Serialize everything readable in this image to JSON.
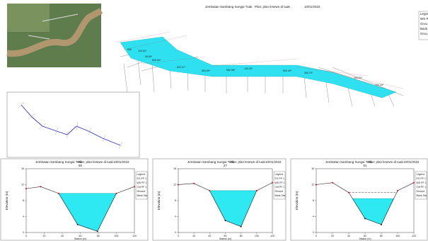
{
  "header": {
    "title": "Jembatan Sambang Sungai Tuak",
    "plan": "Plan: plan lesewn di tuak",
    "date": "10/01/2022"
  },
  "top_legend": [
    "Legen",
    "WS PF",
    "Grou",
    "Bank Sta",
    "Grou"
  ],
  "station_labels": [
    "606",
    "100.00*",
    "90.50*",
    "690.90*",
    "622.07*",
    "603.50*",
    "582.58*",
    "100.40*",
    "500.40*",
    "300.70*",
    "100.32*",
    "700.40*"
  ],
  "panels": [
    {
      "title": "Jembatan Sambang Sungai Tuak",
      "plan": "Plan: plan lesewn di tuak",
      "date": "10/01/2022",
      "station": "60",
      "x_label": "Station (m)",
      "y_label": "Elevation (m)",
      "legend": [
        "Legend",
        "EG PF 1",
        "WS PF 1",
        "Crit PF 1",
        "Ground",
        "Bank Sta"
      ],
      "xlim": [
        0,
        120
      ],
      "ylim": [
        0,
        16
      ],
      "xticks": [
        0,
        20,
        40,
        60,
        80,
        100,
        120
      ],
      "yticks": [
        0,
        4,
        8,
        12,
        16
      ],
      "ground_x": [
        0,
        16,
        36,
        57,
        79,
        100,
        120
      ],
      "ground_y": [
        11,
        11.5,
        9.8,
        2,
        0.3,
        9.8,
        11.5
      ],
      "water_level": 9.8
    },
    {
      "title": "Jembatan Sambang Sungai Tuak",
      "plan": "Plan: plan lesewn di tuak",
      "date": "10/01/2022",
      "station": "27",
      "x_label": "Station (m)",
      "y_label": "Elevation (m)",
      "legend": [
        "Legend",
        "EG PF 1",
        "WS PF 1",
        "Crit PF 1",
        "Ground",
        "Bank Sta"
      ],
      "xlim": [
        0,
        120
      ],
      "ylim": [
        0,
        16
      ],
      "xticks": [
        0,
        20,
        40,
        60,
        80,
        100,
        120
      ],
      "yticks": [
        0,
        4,
        8,
        12,
        16
      ],
      "ground_x": [
        0,
        20,
        40,
        60,
        80,
        100,
        120
      ],
      "ground_y": [
        12,
        12.3,
        10.5,
        3,
        1.5,
        10.5,
        12.5
      ],
      "water_level": 10.5
    },
    {
      "title": "Jembatan Sambang Sungai Tuak",
      "plan": "Plan: plan lesewn di tuak",
      "date": "10/01/2022",
      "station": "51",
      "x_label": "Station (m)",
      "y_label": "Elevation (m)",
      "legend": [
        "Legend",
        "EG PF 1",
        "WS PF 1",
        "Crit PF 1",
        "Ground",
        "Bank Sta"
      ],
      "xlim": [
        0,
        120
      ],
      "ylim": [
        0,
        16
      ],
      "xticks": [
        0,
        20,
        40,
        60,
        80,
        100,
        120
      ],
      "yticks": [
        0,
        4,
        8,
        12,
        16
      ],
      "ground_x": [
        0,
        20,
        40,
        60,
        80,
        100,
        120
      ],
      "ground_y": [
        12,
        12.5,
        10,
        3.5,
        2,
        10.5,
        12.5
      ],
      "water_level": 8.5,
      "energy_level": 10
    }
  ]
}
